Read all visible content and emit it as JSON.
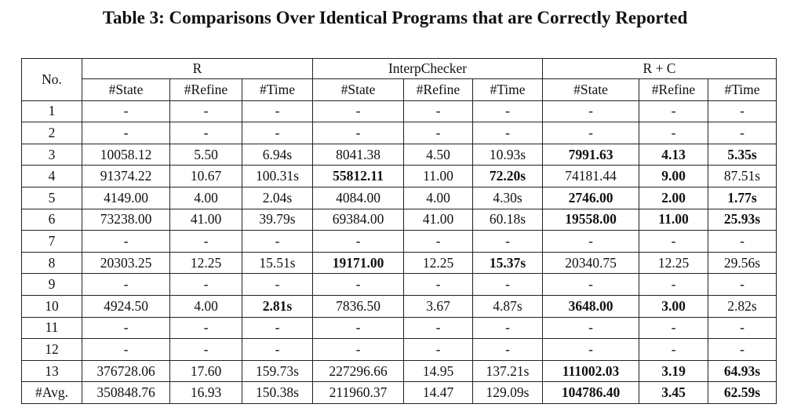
{
  "caption": "Table 3: Comparisons Over Identical Programs that are Correctly Reported",
  "no_header": "No.",
  "groups": [
    "R",
    "InterpChecker",
    "R + C"
  ],
  "subheaders": [
    "#State",
    "#Refine",
    "#Time"
  ],
  "rows": [
    {
      "no": "1",
      "cells": [
        "-",
        "-",
        "-",
        "-",
        "-",
        "-",
        "-",
        "-",
        "-"
      ],
      "bold": []
    },
    {
      "no": "2",
      "cells": [
        "-",
        "-",
        "-",
        "-",
        "-",
        "-",
        "-",
        "-",
        "-"
      ],
      "bold": []
    },
    {
      "no": "3",
      "cells": [
        "10058.12",
        "5.50",
        "6.94s",
        "8041.38",
        "4.50",
        "10.93s",
        "7991.63",
        "4.13",
        "5.35s"
      ],
      "bold": [
        6,
        7,
        8
      ]
    },
    {
      "no": "4",
      "cells": [
        "91374.22",
        "10.67",
        "100.31s",
        "55812.11",
        "11.00",
        "72.20s",
        "74181.44",
        "9.00",
        "87.51s"
      ],
      "bold": [
        3,
        5,
        7
      ]
    },
    {
      "no": "5",
      "cells": [
        "4149.00",
        "4.00",
        "2.04s",
        "4084.00",
        "4.00",
        "4.30s",
        "2746.00",
        "2.00",
        "1.77s"
      ],
      "bold": [
        6,
        7,
        8
      ]
    },
    {
      "no": "6",
      "cells": [
        "73238.00",
        "41.00",
        "39.79s",
        "69384.00",
        "41.00",
        "60.18s",
        "19558.00",
        "11.00",
        "25.93s"
      ],
      "bold": [
        6,
        7,
        8
      ]
    },
    {
      "no": "7",
      "cells": [
        "-",
        "-",
        "-",
        "-",
        "-",
        "-",
        "-",
        "-",
        "-"
      ],
      "bold": []
    },
    {
      "no": "8",
      "cells": [
        "20303.25",
        "12.25",
        "15.51s",
        "19171.00",
        "12.25",
        "15.37s",
        "20340.75",
        "12.25",
        "29.56s"
      ],
      "bold": [
        3,
        5
      ]
    },
    {
      "no": "9",
      "cells": [
        "-",
        "-",
        "-",
        "-",
        "-",
        "-",
        "-",
        "-",
        "-"
      ],
      "bold": []
    },
    {
      "no": "10",
      "cells": [
        "4924.50",
        "4.00",
        "2.81s",
        "7836.50",
        "3.67",
        "4.87s",
        "3648.00",
        "3.00",
        "2.82s"
      ],
      "bold": [
        2,
        6,
        7
      ]
    },
    {
      "no": "11",
      "cells": [
        "-",
        "-",
        "-",
        "-",
        "-",
        "-",
        "-",
        "-",
        "-"
      ],
      "bold": []
    },
    {
      "no": "12",
      "cells": [
        "-",
        "-",
        "-",
        "-",
        "-",
        "-",
        "-",
        "-",
        "-"
      ],
      "bold": []
    },
    {
      "no": "13",
      "cells": [
        "376728.06",
        "17.60",
        "159.73s",
        "227296.66",
        "14.95",
        "137.21s",
        "111002.03",
        "3.19",
        "64.93s"
      ],
      "bold": [
        6,
        7,
        8
      ]
    },
    {
      "no": "#Avg.",
      "cells": [
        "350848.76",
        "16.93",
        "150.38s",
        "211960.37",
        "14.47",
        "129.09s",
        "104786.40",
        "3.45",
        "62.59s"
      ],
      "bold": [
        6,
        7,
        8
      ]
    }
  ]
}
